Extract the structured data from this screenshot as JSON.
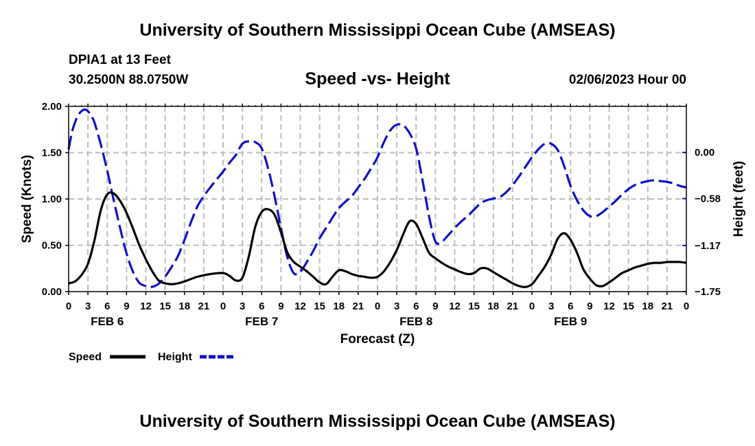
{
  "header": {
    "title": "University of Southern Mississippi Ocean Cube (AMSEAS)",
    "station": "DPIA1 at 13 Feet",
    "coords": "30.2500N  88.0750W",
    "subtitle": "Speed -vs- Height",
    "datetime": "02/06/2023 Hour 00"
  },
  "footer": {
    "title": "University of Southern Mississippi Ocean Cube (AMSEAS)"
  },
  "chart_data": {
    "type": "line",
    "title": "Speed -vs- Height",
    "xlabel": "Forecast (Z)",
    "ylabel": "Speed (Knots)",
    "y2label": "Height (feet)",
    "xlim": [
      0,
      96
    ],
    "ylim": [
      0,
      2.0
    ],
    "y2lim": [
      -1.75,
      0.58
    ],
    "x_tick_labels": [
      "0",
      "3",
      "6",
      "9",
      "12",
      "15",
      "18",
      "21",
      "0",
      "3",
      "6",
      "9",
      "12",
      "15",
      "18",
      "21",
      "0",
      "3",
      "6",
      "9",
      "12",
      "15",
      "18",
      "21",
      "0",
      "3",
      "6",
      "9",
      "12",
      "15",
      "18",
      "21",
      "0"
    ],
    "day_labels": [
      {
        "x": 6,
        "label": "FEB 6"
      },
      {
        "x": 30,
        "label": "FEB 7"
      },
      {
        "x": 54,
        "label": "FEB 8"
      },
      {
        "x": 78,
        "label": "FEB 9"
      }
    ],
    "y_ticks": [
      {
        "v": 0,
        "label": "0.00"
      },
      {
        "v": 0.5,
        "label": "0.50"
      },
      {
        "v": 1.0,
        "label": "1.00"
      },
      {
        "v": 1.5,
        "label": "1.50"
      },
      {
        "v": 2.0,
        "label": "2.00"
      }
    ],
    "y2_ticks": [
      {
        "v": -1.75,
        "label": "−1.75"
      },
      {
        "v": -1.17,
        "label": "−1.17"
      },
      {
        "v": -0.58,
        "label": "−0.58"
      },
      {
        "v": 0.0,
        "label": "0.00"
      }
    ],
    "grid": true,
    "series": [
      {
        "name": "Speed",
        "color": "#000000",
        "dashed": false,
        "axis": "left",
        "x": [
          0,
          1,
          2,
          3,
          4,
          5,
          6,
          7,
          8,
          9,
          10,
          11,
          12,
          13,
          14,
          15,
          16,
          17,
          18,
          20,
          22,
          24,
          25,
          26,
          27,
          28,
          29,
          30,
          31,
          32,
          33,
          34,
          35,
          36,
          37,
          38,
          39,
          40,
          41,
          42,
          43,
          44,
          45,
          46,
          47,
          48,
          49,
          50,
          51,
          52,
          53,
          54,
          55,
          56,
          57,
          58,
          59,
          60,
          61,
          62,
          63,
          64,
          65,
          66,
          67,
          68,
          69,
          70,
          71,
          72,
          73,
          74,
          75,
          76,
          77,
          78,
          79,
          80,
          81,
          82,
          83,
          84,
          85,
          86,
          87,
          88,
          89,
          90,
          91,
          92,
          93,
          94,
          95,
          96
        ],
        "values": [
          0.09,
          0.11,
          0.18,
          0.3,
          0.55,
          0.88,
          1.05,
          1.06,
          0.98,
          0.85,
          0.68,
          0.5,
          0.35,
          0.22,
          0.12,
          0.09,
          0.08,
          0.09,
          0.11,
          0.16,
          0.19,
          0.2,
          0.17,
          0.12,
          0.15,
          0.38,
          0.7,
          0.86,
          0.89,
          0.83,
          0.64,
          0.42,
          0.32,
          0.27,
          0.22,
          0.16,
          0.1,
          0.08,
          0.16,
          0.23,
          0.22,
          0.19,
          0.17,
          0.16,
          0.15,
          0.16,
          0.22,
          0.32,
          0.45,
          0.62,
          0.76,
          0.73,
          0.58,
          0.42,
          0.36,
          0.31,
          0.27,
          0.24,
          0.21,
          0.19,
          0.2,
          0.25,
          0.25,
          0.21,
          0.17,
          0.13,
          0.09,
          0.06,
          0.05,
          0.08,
          0.17,
          0.27,
          0.4,
          0.57,
          0.63,
          0.56,
          0.42,
          0.24,
          0.14,
          0.07,
          0.06,
          0.1,
          0.15,
          0.2,
          0.23,
          0.26,
          0.28,
          0.3,
          0.31,
          0.31,
          0.32,
          0.32,
          0.32,
          0.31
        ]
      },
      {
        "name": "Height",
        "color": "#1010c8",
        "dashed": true,
        "axis": "right",
        "x": [
          0,
          0.5,
          1,
          1.5,
          2,
          2.5,
          3,
          3.5,
          4,
          5,
          6,
          7,
          8,
          9,
          10,
          11,
          12,
          13,
          14,
          15,
          16,
          17,
          18,
          19,
          20,
          21,
          22,
          23,
          24,
          25,
          26,
          27,
          28,
          29,
          30,
          31,
          32,
          33,
          34,
          35,
          36,
          37,
          38,
          39,
          40,
          41,
          42,
          43,
          44,
          45,
          46,
          47,
          48,
          49,
          50,
          51,
          52,
          53,
          54,
          55,
          56,
          57,
          58,
          59,
          60,
          61,
          62,
          63,
          64,
          65,
          66,
          67,
          68,
          69,
          70,
          71,
          72,
          73,
          74,
          75,
          76,
          77,
          78,
          79,
          80,
          81,
          82,
          83,
          84,
          85,
          86,
          87,
          88,
          89,
          90,
          91,
          92,
          93,
          94,
          95,
          96
        ],
        "values": [
          0.04,
          0.25,
          0.38,
          0.47,
          0.52,
          0.54,
          0.52,
          0.46,
          0.38,
          0.1,
          -0.23,
          -0.6,
          -0.95,
          -1.27,
          -1.5,
          -1.64,
          -1.68,
          -1.69,
          -1.65,
          -1.56,
          -1.44,
          -1.3,
          -1.1,
          -0.88,
          -0.68,
          -0.55,
          -0.44,
          -0.34,
          -0.24,
          -0.13,
          -0.03,
          0.11,
          0.14,
          0.13,
          0.05,
          -0.2,
          -0.55,
          -0.95,
          -1.32,
          -1.52,
          -1.5,
          -1.38,
          -1.24,
          -1.08,
          -0.95,
          -0.82,
          -0.7,
          -0.62,
          -0.55,
          -0.44,
          -0.33,
          -0.2,
          -0.06,
          0.13,
          0.28,
          0.35,
          0.34,
          0.24,
          0.05,
          -0.35,
          -0.8,
          -1.12,
          -1.12,
          -1.04,
          -0.95,
          -0.87,
          -0.8,
          -0.72,
          -0.64,
          -0.6,
          -0.58,
          -0.56,
          -0.5,
          -0.41,
          -0.3,
          -0.18,
          -0.06,
          0.04,
          0.11,
          0.11,
          0.03,
          -0.17,
          -0.42,
          -0.6,
          -0.73,
          -0.8,
          -0.8,
          -0.75,
          -0.68,
          -0.61,
          -0.53,
          -0.46,
          -0.41,
          -0.38,
          -0.36,
          -0.35,
          -0.36,
          -0.37,
          -0.39,
          -0.42,
          -0.44
        ]
      }
    ],
    "legend": {
      "position": "bottom-left",
      "entries": [
        "Speed",
        "Height"
      ]
    }
  }
}
